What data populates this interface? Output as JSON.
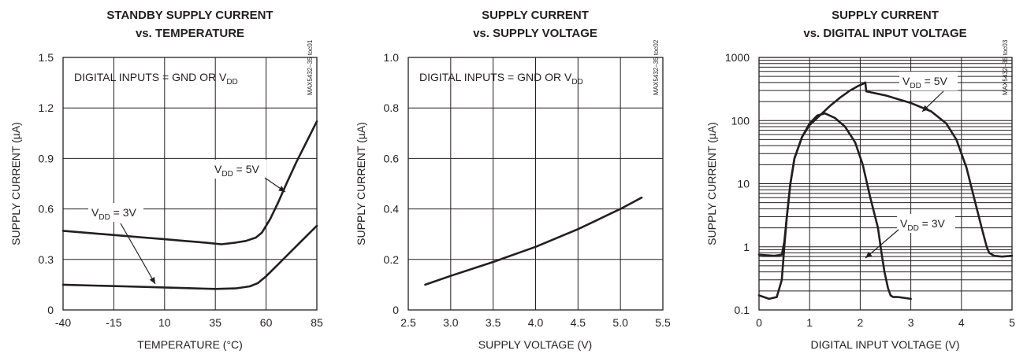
{
  "chart_data": [
    {
      "type": "line",
      "title": [
        "STANDBY SUPPLY CURRENT",
        "vs. TEMPERATURE"
      ],
      "xlabel": "TEMPERATURE (°C)",
      "ylabel": "SUPPLY CURRENT (µA)",
      "xlim": [
        -40,
        85
      ],
      "ylim": [
        0,
        1.5
      ],
      "x_ticks": [
        "-40",
        "-15",
        "10",
        "35",
        "60",
        "85"
      ],
      "y_ticks": [
        "0",
        "0.3",
        "0.6",
        "0.9",
        "1.2",
        "1.5"
      ],
      "grid": "major",
      "annotation": "DIGITAL INPUTS = GND OR V",
      "annotation_sub": "DD",
      "doc_code": "MAX5432–35 toc01",
      "series": [
        {
          "name": "VDD = 5V",
          "label_main": "V",
          "label_sub": "DD",
          "label_tail": " = 5V",
          "x": [
            -40,
            -30,
            -20,
            -10,
            0,
            10,
            20,
            30,
            38,
            45,
            50,
            55,
            58,
            62,
            66,
            70,
            75,
            80,
            85
          ],
          "y": [
            0.47,
            0.46,
            0.45,
            0.44,
            0.43,
            0.42,
            0.41,
            0.4,
            0.39,
            0.4,
            0.41,
            0.43,
            0.46,
            0.54,
            0.64,
            0.75,
            0.88,
            1.0,
            1.12
          ]
        },
        {
          "name": "VDD = 3V",
          "label_main": "V",
          "label_sub": "DD",
          "label_tail": " = 3V",
          "x": [
            -40,
            -25,
            -10,
            5,
            20,
            35,
            45,
            52,
            56,
            60,
            65,
            70,
            75,
            80,
            85
          ],
          "y": [
            0.15,
            0.145,
            0.14,
            0.135,
            0.13,
            0.125,
            0.128,
            0.14,
            0.16,
            0.2,
            0.26,
            0.32,
            0.38,
            0.44,
            0.5
          ]
        }
      ]
    },
    {
      "type": "line",
      "title": [
        "SUPPLY CURRENT",
        "vs. SUPPLY VOLTAGE"
      ],
      "xlabel": "SUPPLY VOLTAGE (V)",
      "ylabel": "SUPPLY CURRENT (µA)",
      "xlim": [
        2.5,
        5.5
      ],
      "ylim": [
        0,
        1.0
      ],
      "x_ticks": [
        "2.5",
        "3.0",
        "3.5",
        "4.0",
        "4.5",
        "5.0",
        "5.5"
      ],
      "y_ticks": [
        "0",
        "0.2",
        "0.4",
        "0.6",
        "0.8",
        "1.0"
      ],
      "grid": "major",
      "annotation": "DIGITAL INPUTS = GND OR V",
      "annotation_sub": "DD",
      "doc_code": "MAX5432–35 toc02",
      "series": [
        {
          "x": [
            2.7,
            3.0,
            3.5,
            4.0,
            4.5,
            5.0,
            5.25
          ],
          "y": [
            0.1,
            0.135,
            0.19,
            0.25,
            0.32,
            0.4,
            0.445
          ]
        }
      ]
    },
    {
      "type": "line",
      "title": [
        "SUPPLY CURRENT",
        "vs. DIGITAL INPUT VOLTAGE"
      ],
      "xlabel": "DIGITAL INPUT VOLTAGE (V)",
      "ylabel": "SUPPLY CURRENT (µA)",
      "xlim": [
        0,
        5
      ],
      "ylim": [
        0.1,
        1000
      ],
      "yscale": "log",
      "x_ticks": [
        "0",
        "1",
        "2",
        "3",
        "4",
        "5"
      ],
      "y_ticks": [
        "0.1",
        "1",
        "10",
        "100",
        "1000"
      ],
      "grid": "major+minor",
      "doc_code": "MAX5432–35 toc03",
      "series": [
        {
          "name": "VDD = 5V",
          "label_main": "V",
          "label_sub": "DD",
          "label_tail": " = 5V",
          "x": [
            0,
            0.3,
            0.45,
            0.5,
            0.55,
            0.62,
            0.7,
            0.85,
            1.0,
            1.2,
            1.4,
            1.6,
            1.8,
            1.95,
            2.05,
            2.1,
            2.12,
            2.5,
            3.0,
            3.4,
            3.7,
            3.9,
            4.1,
            4.25,
            4.4,
            4.5,
            4.55,
            4.65,
            4.8,
            5.0
          ],
          "y": [
            0.75,
            0.72,
            0.75,
            1.2,
            3,
            10,
            25,
            55,
            85,
            120,
            170,
            230,
            300,
            350,
            380,
            400,
            290,
            250,
            190,
            140,
            90,
            50,
            18,
            6,
            2,
            1,
            0.8,
            0.72,
            0.7,
            0.72
          ]
        },
        {
          "name": "VDD = 3V",
          "label_main": "V",
          "label_sub": "DD",
          "label_tail": " = 3V",
          "x": [
            0,
            0.2,
            0.35,
            0.45,
            0.5,
            0.55,
            0.62,
            0.7,
            0.85,
            1.0,
            1.15,
            1.3,
            1.5,
            1.7,
            1.9,
            2.05,
            2.2,
            2.35,
            2.42,
            2.48,
            2.55,
            2.6,
            2.65,
            2.75,
            3.0
          ],
          "y": [
            0.17,
            0.15,
            0.16,
            0.3,
            1.0,
            3.0,
            10,
            25,
            55,
            90,
            120,
            130,
            110,
            80,
            45,
            20,
            6,
            2,
            0.8,
            0.4,
            0.22,
            0.17,
            0.16,
            0.16,
            0.15
          ]
        }
      ]
    }
  ]
}
